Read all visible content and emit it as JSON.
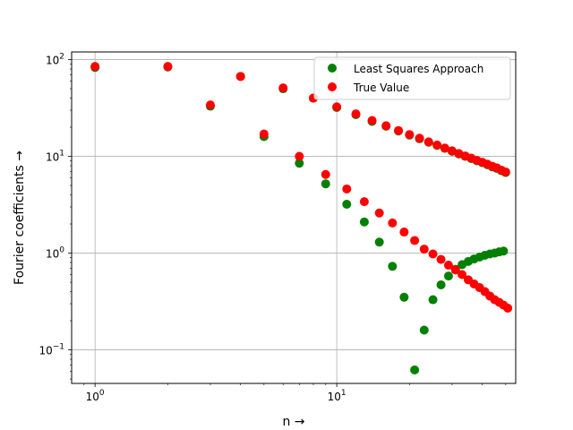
{
  "chart_data": {
    "type": "scatter",
    "title": "",
    "xlabel": "n →",
    "ylabel": "Fourier coefficients →",
    "xscale": "log",
    "yscale": "log",
    "xlim": [
      0.8,
      55
    ],
    "ylim": [
      0.045,
      120
    ],
    "grid": true,
    "legend_position": "top-right",
    "x_ticks": [
      {
        "value": 1,
        "base": "10",
        "exp": "0"
      },
      {
        "value": 10,
        "base": "10",
        "exp": "1"
      }
    ],
    "y_ticks": [
      {
        "value": 0.1,
        "base": "10",
        "exp": "−1"
      },
      {
        "value": 1,
        "base": "10",
        "exp": "0"
      },
      {
        "value": 10,
        "base": "10",
        "exp": "1"
      },
      {
        "value": 100,
        "base": "10",
        "exp": "2"
      }
    ],
    "series": [
      {
        "name": "Least Squares Approach",
        "color": "#008000",
        "points": [
          [
            1,
            83
          ],
          [
            2,
            84
          ],
          [
            3,
            33
          ],
          [
            4,
            67
          ],
          [
            5,
            16
          ],
          [
            6,
            50
          ],
          [
            7,
            8.5
          ],
          [
            8,
            40
          ],
          [
            9,
            5.2
          ],
          [
            10,
            32
          ],
          [
            11,
            3.2
          ],
          [
            12,
            27
          ],
          [
            13,
            2.1
          ],
          [
            14,
            23
          ],
          [
            15,
            1.3
          ],
          [
            16,
            20.5
          ],
          [
            17,
            0.73
          ],
          [
            18,
            18.3
          ],
          [
            19,
            0.35
          ],
          [
            20,
            16.6
          ],
          [
            21,
            0.062
          ],
          [
            22,
            15.2
          ],
          [
            23,
            0.16
          ],
          [
            24,
            14
          ],
          [
            25,
            0.33
          ],
          [
            26,
            13
          ],
          [
            27,
            0.47
          ],
          [
            28,
            12.1
          ],
          [
            29,
            0.58
          ],
          [
            30,
            11.3
          ],
          [
            31,
            0.68
          ],
          [
            32,
            10.6
          ],
          [
            33,
            0.76
          ],
          [
            34,
            10
          ],
          [
            35,
            0.82
          ],
          [
            36,
            9.5
          ],
          [
            37,
            0.87
          ],
          [
            38,
            9
          ],
          [
            39,
            0.91
          ],
          [
            40,
            8.6
          ],
          [
            41,
            0.95
          ],
          [
            42,
            8.2
          ],
          [
            43,
            0.98
          ],
          [
            44,
            7.8
          ],
          [
            45,
            1.0
          ],
          [
            46,
            7.5
          ],
          [
            47,
            1.03
          ],
          [
            48,
            7.1
          ],
          [
            49,
            1.05
          ],
          [
            50,
            6.8
          ]
        ]
      },
      {
        "name": "True Value",
        "color": "#ff0000",
        "points": [
          [
            1,
            85
          ],
          [
            2,
            85
          ],
          [
            3,
            34
          ],
          [
            4,
            67
          ],
          [
            5,
            17
          ],
          [
            6,
            51
          ],
          [
            7,
            10
          ],
          [
            8,
            40
          ],
          [
            9,
            6.5
          ],
          [
            10,
            32.5
          ],
          [
            11,
            4.6
          ],
          [
            12,
            27.5
          ],
          [
            13,
            3.4
          ],
          [
            14,
            23.5
          ],
          [
            15,
            2.6
          ],
          [
            16,
            20.7
          ],
          [
            17,
            2.05
          ],
          [
            18,
            18.5
          ],
          [
            19,
            1.65
          ],
          [
            20,
            16.8
          ],
          [
            21,
            1.35
          ],
          [
            22,
            15.4
          ],
          [
            23,
            1.1
          ],
          [
            24,
            14.1
          ],
          [
            25,
            0.98
          ],
          [
            26,
            13.1
          ],
          [
            27,
            0.86
          ],
          [
            28,
            12.2
          ],
          [
            29,
            0.75
          ],
          [
            30,
            11.4
          ],
          [
            31,
            0.67
          ],
          [
            32,
            10.7
          ],
          [
            33,
            0.6
          ],
          [
            34,
            10.1
          ],
          [
            35,
            0.53
          ],
          [
            36,
            9.6
          ],
          [
            37,
            0.48
          ],
          [
            38,
            9.1
          ],
          [
            39,
            0.44
          ],
          [
            40,
            8.7
          ],
          [
            41,
            0.4
          ],
          [
            42,
            8.3
          ],
          [
            43,
            0.36
          ],
          [
            44,
            7.9
          ],
          [
            45,
            0.33
          ],
          [
            46,
            7.6
          ],
          [
            47,
            0.31
          ],
          [
            48,
            7.2
          ],
          [
            49,
            0.29
          ],
          [
            50,
            6.9
          ],
          [
            51,
            0.27
          ]
        ]
      }
    ]
  }
}
